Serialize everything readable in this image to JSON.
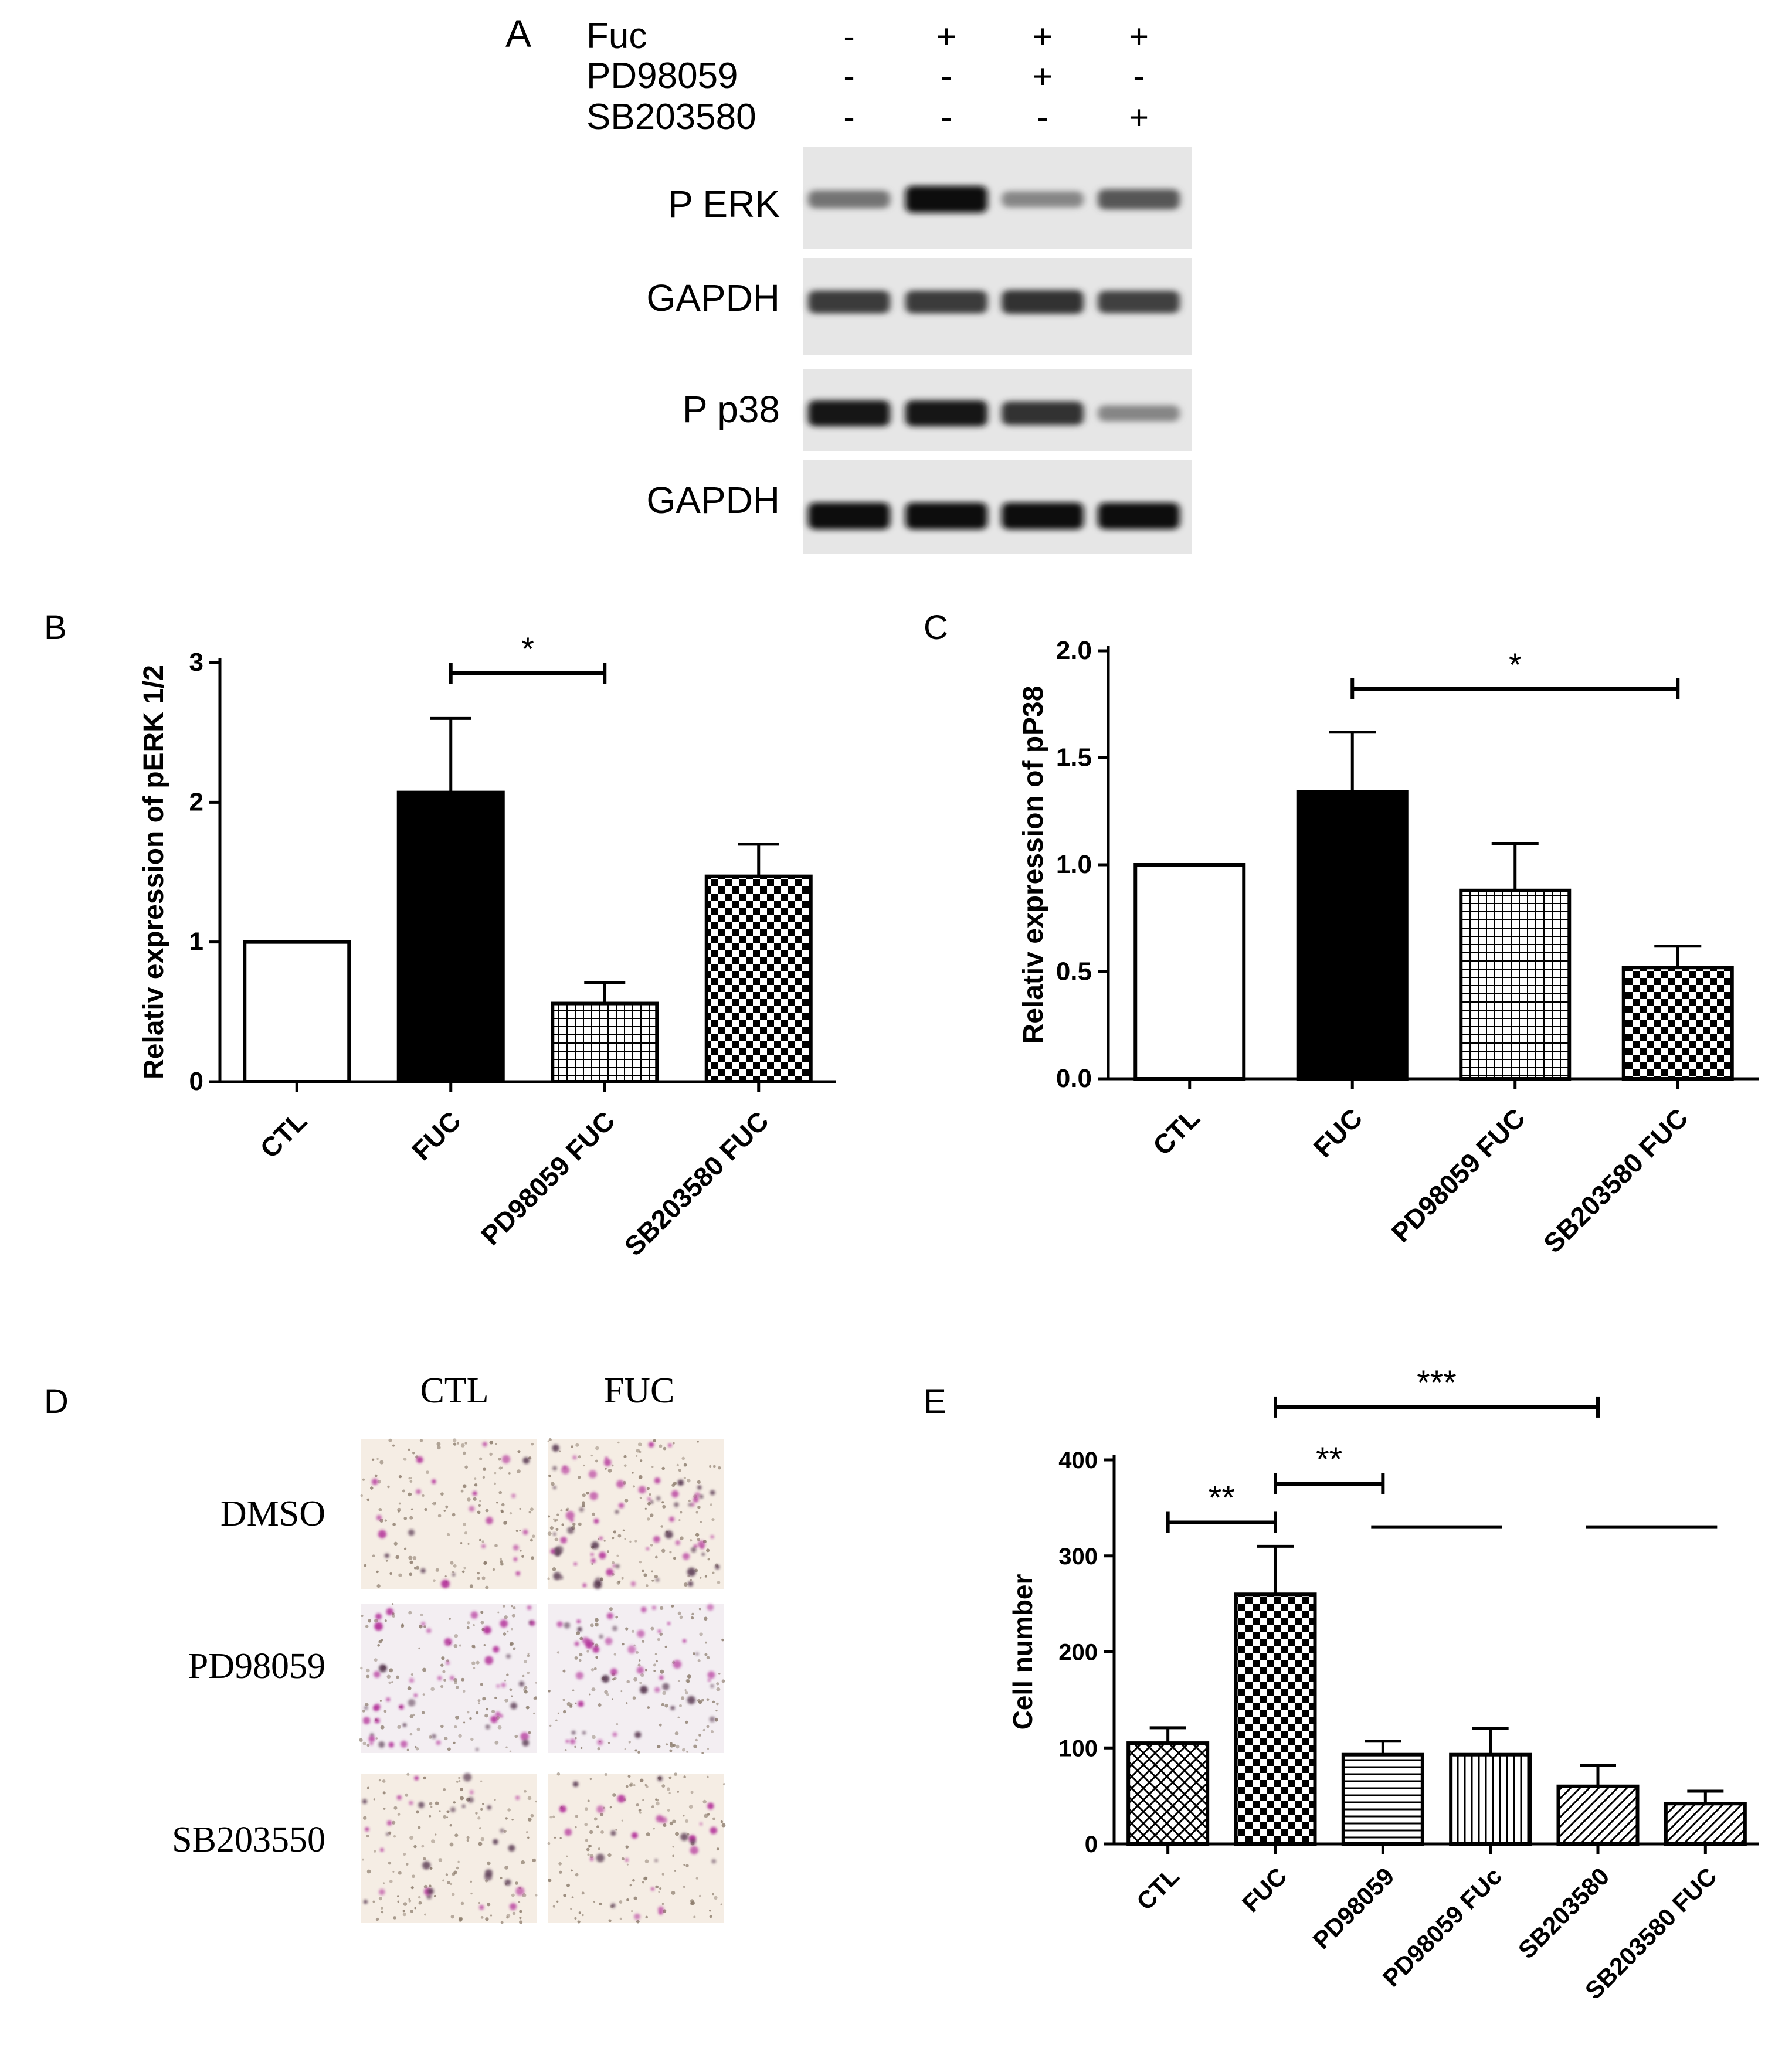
{
  "panels": {
    "A": {
      "letter": "A",
      "treatments": [
        {
          "name": "Fuc",
          "signs": [
            "-",
            "+",
            "+",
            "+"
          ]
        },
        {
          "name": "PD98059",
          "signs": [
            "-",
            "-",
            "+",
            "-"
          ]
        },
        {
          "name": "SB203580",
          "signs": [
            "-",
            "-",
            "-",
            "+"
          ]
        }
      ],
      "blots": [
        {
          "label": "P ERK",
          "intensity": [
            0.45,
            1.0,
            0.35,
            0.6
          ]
        },
        {
          "label": "GAPDH",
          "intensity": [
            0.75,
            0.75,
            0.8,
            0.72
          ]
        },
        {
          "label": "P p38",
          "intensity": [
            0.95,
            0.95,
            0.8,
            0.35
          ]
        },
        {
          "label": "GAPDH",
          "intensity": [
            1.0,
            1.0,
            1.0,
            0.98
          ]
        }
      ]
    },
    "B": {
      "letter": "B"
    },
    "C": {
      "letter": "C"
    },
    "D": {
      "letter": "D",
      "columns": [
        "CTL",
        "FUC"
      ],
      "rows": [
        "DMSO",
        "PD98059",
        "SB203550"
      ],
      "stain_density": [
        [
          0.25,
          0.8
        ],
        [
          0.55,
          0.5
        ],
        [
          0.35,
          0.3
        ]
      ]
    },
    "E": {
      "letter": "E"
    }
  },
  "chart_data": [
    {
      "id": "B",
      "type": "bar",
      "ylabel": "Relativ expression of pERK 1/2",
      "categories": [
        "CTL",
        "FUC",
        "PD98059 FUC",
        "SB203580 FUC"
      ],
      "values": [
        1.0,
        2.07,
        0.56,
        1.47
      ],
      "errors": [
        0,
        0.53,
        0.15,
        0.23
      ],
      "patterns": [
        "white",
        "black",
        "grid",
        "checker"
      ],
      "ylim": [
        0,
        3
      ],
      "yticks": [
        0,
        1,
        2,
        3
      ],
      "ytick_labels": [
        "0",
        "1",
        "2",
        "3"
      ],
      "significance": [
        {
          "from": 1,
          "to": 2,
          "label": "*"
        }
      ]
    },
    {
      "id": "C",
      "type": "bar",
      "ylabel": "Relativ expression of pP38",
      "categories": [
        "CTL",
        "FUC",
        "PD98059 FUC",
        "SB203580 FUC"
      ],
      "values": [
        1.0,
        1.34,
        0.88,
        0.52
      ],
      "errors": [
        0,
        0.28,
        0.22,
        0.1
      ],
      "patterns": [
        "white",
        "black",
        "grid",
        "checker"
      ],
      "ylim": [
        0,
        2.0
      ],
      "yticks": [
        0,
        0.5,
        1.0,
        1.5,
        2.0
      ],
      "ytick_labels": [
        "0.0",
        "0.5",
        "1.0",
        "1.5",
        "2.0"
      ],
      "significance": [
        {
          "from": 1,
          "to": 3,
          "label": "*"
        }
      ]
    },
    {
      "id": "E",
      "type": "bar",
      "ylabel": "Cell number",
      "categories": [
        "CTL",
        "FUC",
        "PD98059",
        "PD98059 FUc",
        "SB203580",
        "SB203580 FUC"
      ],
      "values": [
        105,
        260,
        93,
        93,
        60,
        42
      ],
      "errors": [
        16,
        50,
        14,
        27,
        22,
        13
      ],
      "patterns": [
        "crosshatch",
        "checker",
        "hlines",
        "vlines",
        "diag",
        "diag"
      ],
      "ylim": [
        0,
        400
      ],
      "yticks": [
        0,
        100,
        200,
        300,
        400
      ],
      "ytick_labels": [
        "0",
        "100",
        "200",
        "300",
        "400"
      ],
      "significance": [
        {
          "from": 0,
          "to": 1,
          "label": "**",
          "y": 335
        },
        {
          "from": 1,
          "to": 2,
          "label": "**",
          "y": 375
        },
        {
          "from": 1,
          "to": 4,
          "label": "***",
          "y": 455
        }
      ],
      "plain_lines": [
        {
          "from": 2,
          "to": 3,
          "y": 330
        },
        {
          "from": 4,
          "to": 5,
          "y": 330
        }
      ]
    }
  ]
}
